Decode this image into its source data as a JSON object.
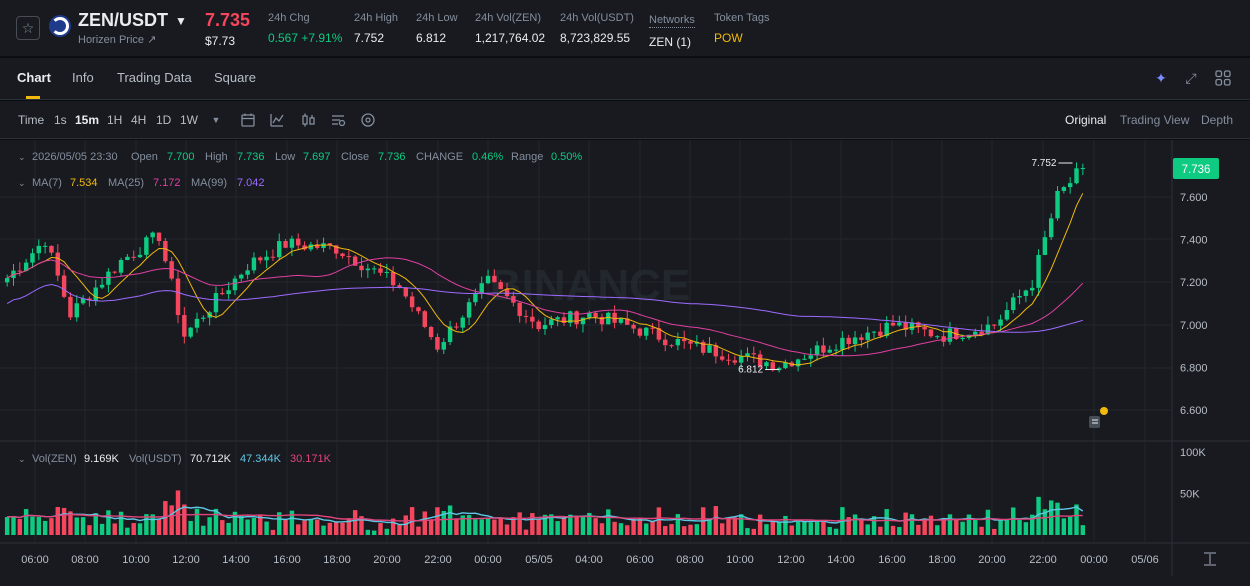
{
  "ticker": {
    "symbol": "ZEN/USDT",
    "subname": "Horizen Price ↗",
    "last_price": "7.735",
    "fiat_price": "$7.73",
    "stats": [
      {
        "label": "24h Chg",
        "value": "0.567 +7.91%",
        "color": "green"
      },
      {
        "label": "24h High",
        "value": "7.752"
      },
      {
        "label": "24h Low",
        "value": "6.812"
      },
      {
        "label": "24h Vol(ZEN)",
        "value": "1,217,764.02"
      },
      {
        "label": "24h Vol(USDT)",
        "value": "8,723,829.55"
      },
      {
        "label": "Networks",
        "value": "ZEN (1)"
      },
      {
        "label": "Token Tags",
        "value": "POW",
        "color": "yellow"
      }
    ]
  },
  "tabs": [
    "Chart",
    "Info",
    "Trading Data",
    "Square"
  ],
  "toolbar": {
    "timeframes": [
      "Time",
      "1s",
      "15m",
      "1H",
      "4H",
      "1D",
      "1W"
    ],
    "active_timeframe": "15m",
    "views": [
      "Original",
      "Trading View",
      "Depth"
    ],
    "active_view": "Original"
  },
  "legend": {
    "date": "2026/05/05 23:30",
    "open_label": "Open",
    "open": "7.700",
    "high_label": "High",
    "high": "7.736",
    "low_label": "Low",
    "low": "7.697",
    "close_label": "Close",
    "close": "7.736",
    "change_label": "CHANGE",
    "change": "0.46%",
    "range_label": "Range",
    "range": "0.50%",
    "ma7_label": "MA(7)",
    "ma7": "7.534",
    "ma25_label": "MA(25)",
    "ma25": "7.172",
    "ma99_label": "MA(99)",
    "ma99": "7.042"
  },
  "vol_legend": {
    "base_label": "Vol(ZEN)",
    "base": "9.169K",
    "quote_label": "Vol(USDT)",
    "quote": "70.712K",
    "ma1": "47.344K",
    "ma2": "30.171K"
  },
  "price_axis": [
    "7.600",
    "7.400",
    "7.200",
    "7.000",
    "6.800",
    "6.600"
  ],
  "current_price_tag": "7.736",
  "high_marker": "7.752",
  "low_marker": "6.812",
  "vol_axis": [
    "100K",
    "50K"
  ],
  "time_axis": [
    "06:00",
    "08:00",
    "10:00",
    "12:00",
    "14:00",
    "16:00",
    "18:00",
    "20:00",
    "22:00",
    "00:00",
    "05/05",
    "04:00",
    "06:00",
    "08:00",
    "10:00",
    "12:00",
    "14:00",
    "16:00",
    "18:00",
    "20:00",
    "22:00",
    "00:00",
    "05/06"
  ],
  "watermark": "BINANCE",
  "colors": {
    "up": "#0ecb81",
    "down": "#f6465d",
    "ma7": "#f0b90b",
    "ma25": "#e040a0",
    "ma99": "#9d6bff",
    "vol_ma1": "#5ec8e6",
    "vol_ma2": "#e0457b"
  },
  "chart_data": {
    "type": "candlestick",
    "interval": "15m",
    "price_range": [
      6.5,
      7.8
    ],
    "key_points": [
      {
        "t": "05:00",
        "p": 7.22
      },
      {
        "t": "06:30",
        "p": 7.4
      },
      {
        "t": "07:30",
        "p": 7.05
      },
      {
        "t": "09:30",
        "p": 7.3
      },
      {
        "t": "11:00",
        "p": 7.42
      },
      {
        "t": "12:00",
        "p": 6.95
      },
      {
        "t": "14:30",
        "p": 7.28
      },
      {
        "t": "16:00",
        "p": 7.38
      },
      {
        "t": "18:00",
        "p": 7.36
      },
      {
        "t": "20:30",
        "p": 7.18
      },
      {
        "t": "22:00",
        "p": 6.9
      },
      {
        "t": "00:00",
        "p": 7.2
      },
      {
        "t": "02:00",
        "p": 7.0
      },
      {
        "t": "04:00",
        "p": 7.05
      },
      {
        "t": "08:00",
        "p": 6.9
      },
      {
        "t": "11:30",
        "p": 6.812
      },
      {
        "t": "14:00",
        "p": 6.93
      },
      {
        "t": "16:00",
        "p": 7.0
      },
      {
        "t": "18:00",
        "p": 6.95
      },
      {
        "t": "20:00",
        "p": 7.0
      },
      {
        "t": "21:30",
        "p": 7.2
      },
      {
        "t": "22:30",
        "p": 7.6
      },
      {
        "t": "23:30",
        "p": 7.736
      }
    ]
  }
}
